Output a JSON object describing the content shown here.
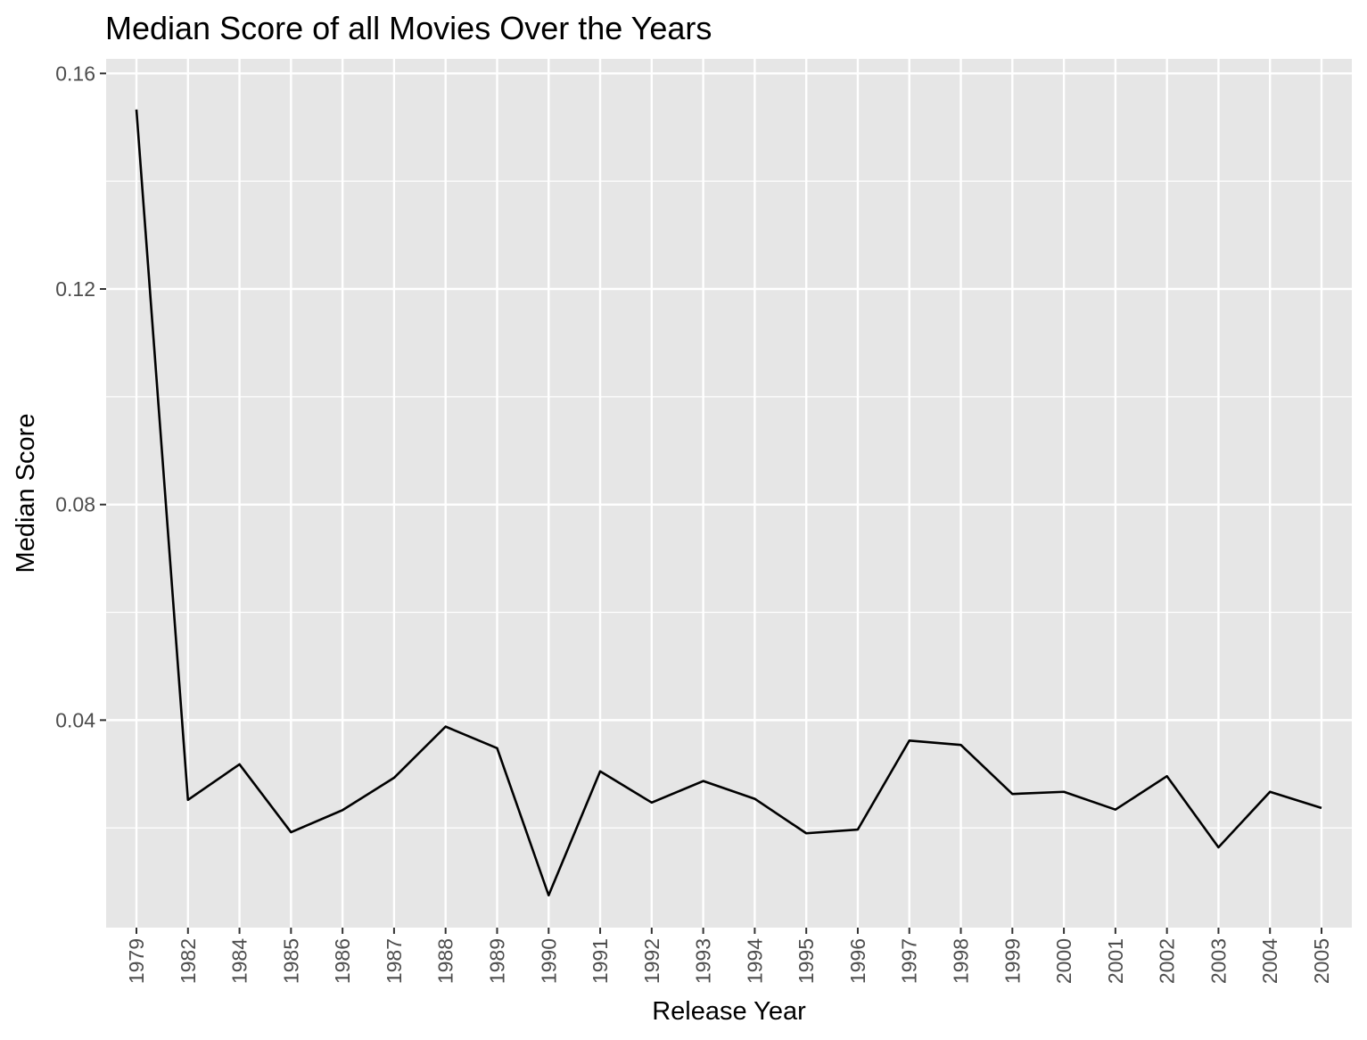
{
  "chart_data": {
    "type": "line",
    "title": "Median Score of all Movies Over the Years",
    "xlabel": "Release Year",
    "ylabel": "Median Score",
    "x_scale": "discrete",
    "categories": [
      "1979",
      "1982",
      "1984",
      "1985",
      "1986",
      "1987",
      "1988",
      "1989",
      "1990",
      "1991",
      "1992",
      "1993",
      "1994",
      "1995",
      "1996",
      "1997",
      "1998",
      "1999",
      "2000",
      "2001",
      "2002",
      "2003",
      "2004",
      "2005"
    ],
    "series": [
      {
        "values": [
          0.1533,
          0.0252,
          0.0318,
          0.0192,
          0.0233,
          0.0293,
          0.0388,
          0.0348,
          0.0075,
          0.0305,
          0.0247,
          0.0287,
          0.0254,
          0.019,
          0.0197,
          0.0362,
          0.0354,
          0.0263,
          0.0267,
          0.0234,
          0.0296,
          0.0164,
          0.0267,
          0.0237
        ]
      }
    ],
    "ylim": [
      0.0015,
      0.1627
    ],
    "yticks": [
      {
        "value": 0.04,
        "label": "0.04"
      },
      {
        "value": 0.08,
        "label": "0.08"
      },
      {
        "value": 0.12,
        "label": "0.12"
      },
      {
        "value": 0.16,
        "label": "0.16"
      }
    ],
    "y_minor_ticks": [
      0.02,
      0.06,
      0.1,
      0.14
    ],
    "grid": true,
    "panel_background": "#e6e6e6",
    "grid_color": "#ffffff",
    "line_color": "#000000",
    "tick_label_color": "#4d4d4d"
  }
}
